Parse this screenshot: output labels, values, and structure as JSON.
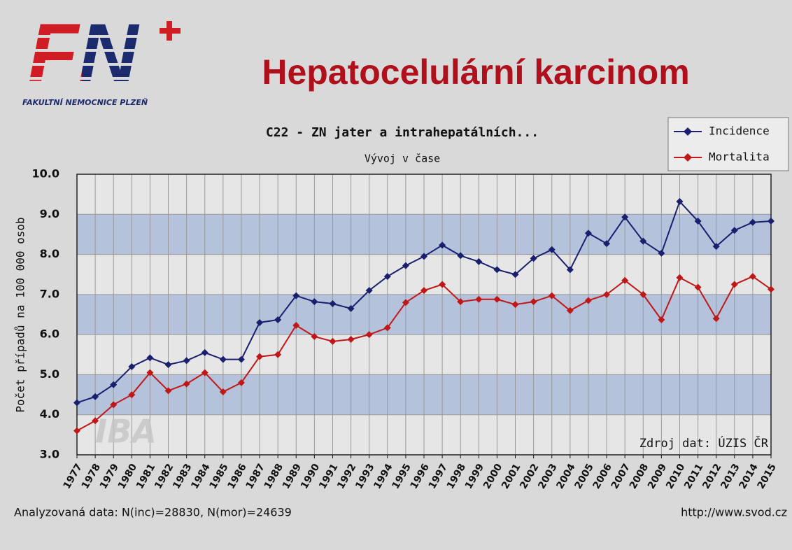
{
  "logo": {
    "mark": "FN",
    "name": "FAKULTNÍ NEMOCNICE PLZEŇ"
  },
  "slide_title": "Hepatocelulární karcinom",
  "chart_data": {
    "type": "line",
    "title": "C22 - ZN jater a intrahepatálních...",
    "subtitle": "Vývoj v čase",
    "y_label": "Počet případů na 100 000 osob",
    "categories": [
      "1977",
      "1978",
      "1979",
      "1980",
      "1981",
      "1982",
      "1983",
      "1984",
      "1985",
      "1986",
      "1987",
      "1988",
      "1989",
      "1990",
      "1991",
      "1992",
      "1993",
      "1994",
      "1995",
      "1996",
      "1997",
      "1998",
      "1999",
      "2000",
      "2001",
      "2002",
      "2003",
      "2004",
      "2005",
      "2006",
      "2007",
      "2008",
      "2009",
      "2010",
      "2011",
      "2012",
      "2013",
      "2014",
      "2015"
    ],
    "series": [
      {
        "name": "Incidence",
        "color": "#1a1f6e",
        "values": [
          4.3,
          4.45,
          4.75,
          5.2,
          5.42,
          5.25,
          5.35,
          5.55,
          5.38,
          5.38,
          6.3,
          6.37,
          6.97,
          6.82,
          6.77,
          6.65,
          7.1,
          7.45,
          7.72,
          7.95,
          8.23,
          7.97,
          7.82,
          7.62,
          7.5,
          7.9,
          8.12,
          7.62,
          8.53,
          8.27,
          8.93,
          8.33,
          8.03,
          9.32,
          8.83,
          8.2,
          8.6,
          8.8,
          8.83
        ]
      },
      {
        "name": "Mortalita",
        "color": "#c01818",
        "values": [
          3.6,
          3.85,
          4.25,
          4.5,
          5.05,
          4.6,
          4.77,
          5.05,
          4.57,
          4.8,
          5.45,
          5.5,
          6.23,
          5.95,
          5.83,
          5.88,
          6.0,
          6.17,
          6.8,
          7.1,
          7.25,
          6.82,
          6.88,
          6.88,
          6.75,
          6.82,
          6.97,
          6.6,
          6.85,
          7.0,
          7.35,
          7.0,
          6.37,
          7.42,
          7.18,
          6.4,
          7.25,
          7.45,
          7.13
        ]
      }
    ],
    "ylim": [
      3,
      10
    ],
    "yticks": [
      {
        "value": 3,
        "label": "3.0"
      },
      {
        "value": 4,
        "label": "4.0"
      },
      {
        "value": 5,
        "label": "5.0"
      },
      {
        "value": 6,
        "label": "6.0"
      },
      {
        "value": 7,
        "label": "7.0"
      },
      {
        "value": 8,
        "label": "8.0"
      },
      {
        "value": 9,
        "label": "9.0"
      },
      {
        "value": 10,
        "label": "10.0"
      }
    ],
    "grid": true,
    "legend": "top-right",
    "source": "Zdroj dat: ÚZIS ČR",
    "watermark": "IBA"
  },
  "footer": {
    "left": "Analyzovaná data: N(inc)=28830, N(mor)=24639",
    "right": "http://www.svod.cz"
  }
}
